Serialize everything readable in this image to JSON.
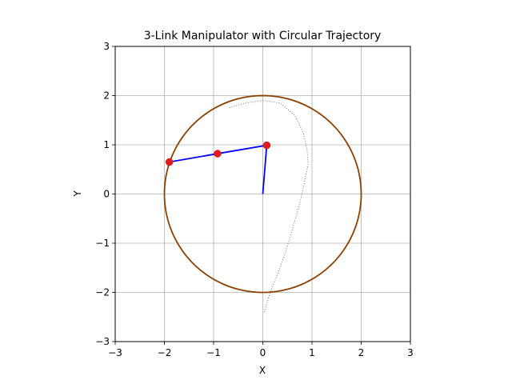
{
  "chart_data": {
    "type": "line",
    "title": "3-Link Manipulator with Circular Trajectory",
    "xlabel": "X",
    "ylabel": "Y",
    "xlim": [
      -3,
      3
    ],
    "ylim": [
      -3,
      3
    ],
    "grid": true,
    "aspect": "equal",
    "xticks": [
      -3,
      -2,
      -1,
      0,
      1,
      2,
      3
    ],
    "yticks": [
      -3,
      -2,
      -1,
      0,
      1,
      2,
      3
    ],
    "xtick_labels": [
      "−3",
      "−2",
      "−1",
      "0",
      "1",
      "2",
      "3"
    ],
    "ytick_labels": [
      "−3",
      "−2",
      "−1",
      "0",
      "1",
      "2",
      "3"
    ],
    "series": [
      {
        "style": "circle",
        "center": [
          0,
          0
        ],
        "radius": 2,
        "color": "#8b4000"
      },
      {
        "style": "dotted",
        "color": "#555555",
        "x": [
          0.03,
          0.15,
          0.35,
          0.55,
          0.75,
          0.86,
          0.92,
          0.9,
          0.82,
          0.65,
          0.35,
          0.0,
          -0.35,
          -0.7
        ],
        "y": [
          -2.4,
          -2.0,
          -1.5,
          -0.9,
          -0.2,
          0.3,
          0.6,
          0.9,
          1.25,
          1.6,
          1.85,
          1.9,
          1.85,
          1.75
        ]
      },
      {
        "style": "links",
        "color": "#0000ff",
        "x": [
          0.0,
          0.08,
          -0.92,
          -1.9
        ],
        "y": [
          0.0,
          0.99,
          0.82,
          0.65
        ]
      },
      {
        "style": "joints",
        "color": "#e41a1c",
        "x": [
          0.08,
          -0.92,
          -1.9
        ],
        "y": [
          0.99,
          0.82,
          0.65
        ]
      }
    ]
  }
}
